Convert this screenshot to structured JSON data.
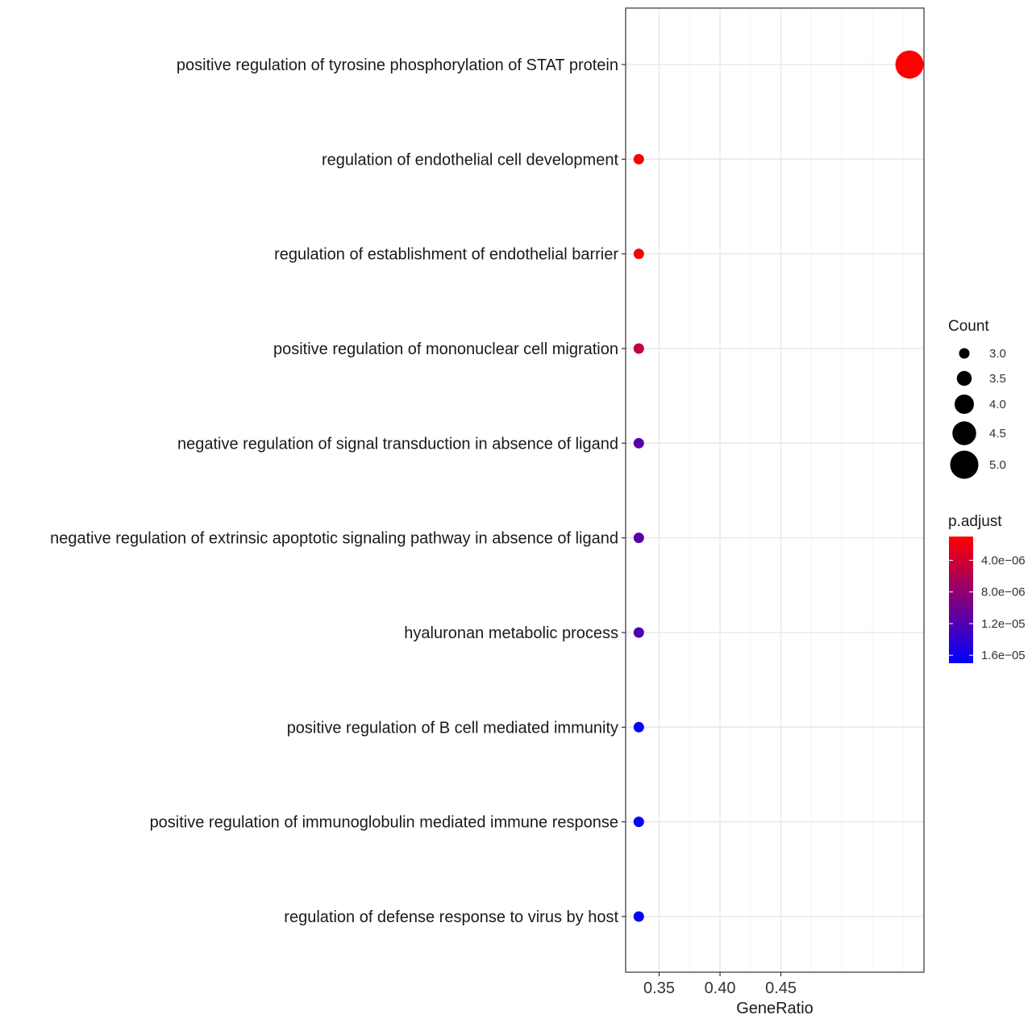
{
  "chart_data": {
    "type": "scatter",
    "subtype": "dot-plot",
    "xlabel": "GeneRatio",
    "ylabel": "",
    "xlim": [
      0.3225,
      0.5675
    ],
    "x_ticks": [
      {
        "value": 0.35,
        "label": "0.35"
      },
      {
        "value": 0.4,
        "label": "0.40"
      },
      {
        "value": 0.45,
        "label": "0.45"
      }
    ],
    "x_minor_gridlines": [
      0.375,
      0.425,
      0.475,
      0.5,
      0.525,
      0.55
    ],
    "grid": true,
    "legend_position": "right",
    "categories": [
      {
        "term": "positive regulation of tyrosine phosphorylation of STAT protein",
        "gene_ratio": 0.5556,
        "count": 5,
        "p_adjust": 1e-06
      },
      {
        "term": "regulation of endothelial cell development",
        "gene_ratio": 0.3333,
        "count": 3,
        "p_adjust": 1.5e-06
      },
      {
        "term": "regulation of establishment of endothelial barrier",
        "gene_ratio": 0.3333,
        "count": 3,
        "p_adjust": 1.5e-06
      },
      {
        "term": "positive regulation of mononuclear cell migration",
        "gene_ratio": 0.3333,
        "count": 3,
        "p_adjust": 5e-06
      },
      {
        "term": "negative regulation of signal transduction in absence of ligand",
        "gene_ratio": 0.3333,
        "count": 3,
        "p_adjust": 1.15e-05
      },
      {
        "term": "negative regulation of extrinsic apoptotic signaling pathway in absence of ligand",
        "gene_ratio": 0.3333,
        "count": 3,
        "p_adjust": 1.15e-05
      },
      {
        "term": "hyaluronan metabolic process",
        "gene_ratio": 0.3333,
        "count": 3,
        "p_adjust": 1.2e-05
      },
      {
        "term": "positive regulation of B cell mediated immunity",
        "gene_ratio": 0.3333,
        "count": 3,
        "p_adjust": 1.65e-05
      },
      {
        "term": "positive regulation of immunoglobulin mediated immune response",
        "gene_ratio": 0.3333,
        "count": 3,
        "p_adjust": 1.65e-05
      },
      {
        "term": "regulation of defense response to virus by host",
        "gene_ratio": 0.3333,
        "count": 3,
        "p_adjust": 1.65e-05
      }
    ],
    "size_legend": {
      "title": "Count",
      "entries": [
        {
          "value": 3.0,
          "label": "3.0"
        },
        {
          "value": 3.5,
          "label": "3.5"
        },
        {
          "value": 4.0,
          "label": "4.0"
        },
        {
          "value": 4.5,
          "label": "4.5"
        },
        {
          "value": 5.0,
          "label": "5.0"
        }
      ]
    },
    "color_legend": {
      "title": "p.adjust",
      "low_color": "#ff0000",
      "high_color": "#0000ff",
      "range": [
        1e-06,
        1.7e-05
      ],
      "ticks": [
        {
          "value": 4e-06,
          "label": "4.0e−06"
        },
        {
          "value": 8e-06,
          "label": "8.0e−06"
        },
        {
          "value": 1.2e-05,
          "label": "1.2e−05"
        },
        {
          "value": 1.6e-05,
          "label": "1.6e−05"
        }
      ]
    },
    "colors": {
      "panel_border": "#333333",
      "grid_major": "#e6e6e6",
      "grid_minor": "#f2f2f2",
      "background": "#ffffff"
    }
  }
}
